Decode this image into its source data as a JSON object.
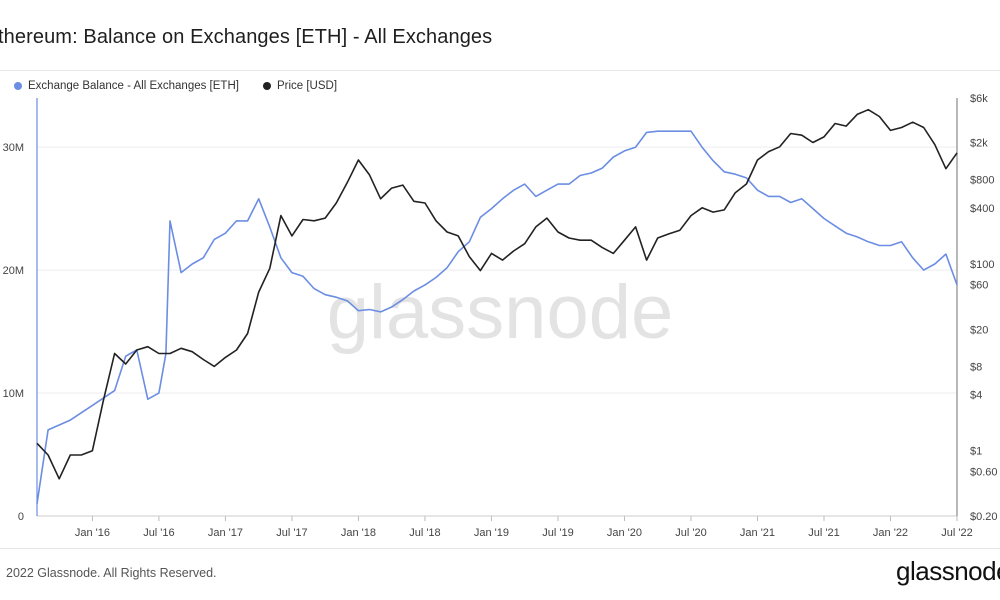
{
  "page": {
    "footer": "2022 Glassnode. All Rights Reserved.",
    "brand": "glassnode",
    "watermark": "glassnode"
  },
  "colors": {
    "balance": "#6b8de3",
    "price": "#222222",
    "grid": "#eeeeee",
    "axis_text": "#444444",
    "watermark": "#e3e3e3"
  },
  "chart_data": {
    "type": "line",
    "title": "thereum: Balance on Exchanges [ETH] - All Exchanges",
    "x_ticks": [
      "Jan '16",
      "Jul '16",
      "Jan '17",
      "Jul '17",
      "Jan '18",
      "Jul '18",
      "Jan '19",
      "Jul '19",
      "Jan '20",
      "Jul '20",
      "Jan '21",
      "Jul '21",
      "Jan '22",
      "Jul '22"
    ],
    "x_range": [
      "2015-08",
      "2022-07"
    ],
    "y_left": {
      "ticks": [
        "0",
        "10M",
        "20M",
        "30M"
      ],
      "values": [
        0,
        10000000,
        20000000,
        30000000
      ],
      "range": [
        0,
        34000000
      ]
    },
    "y_right": {
      "scale": "log",
      "ticks": [
        "$0.20",
        "$0.60",
        "$1",
        "$4",
        "$8",
        "$20",
        "$60",
        "$100",
        "$400",
        "$800",
        "$2k",
        "$6k"
      ],
      "values": [
        0.2,
        0.6,
        1,
        4,
        8,
        20,
        60,
        100,
        400,
        800,
        2000,
        6000
      ],
      "range": [
        0.2,
        6000
      ]
    },
    "legend_position": "top-left",
    "grid": true,
    "series": [
      {
        "name": "Exchange Balance - All Exchanges [ETH]",
        "axis": "left",
        "points": [
          [
            "2015-08",
            1000000
          ],
          [
            "2015-09",
            7000000
          ],
          [
            "2015-11",
            7800000
          ],
          [
            "2016-01",
            9000000
          ],
          [
            "2016-03",
            10200000
          ],
          [
            "2016-04",
            13000000
          ],
          [
            "2016-05",
            13500000
          ],
          [
            "2016-06",
            9500000
          ],
          [
            "2016-07",
            10000000
          ],
          [
            "2016-07-20",
            13200000
          ],
          [
            "2016-08",
            24000000
          ],
          [
            "2016-09",
            19800000
          ],
          [
            "2016-10",
            20500000
          ],
          [
            "2016-11",
            21000000
          ],
          [
            "2016-12",
            22500000
          ],
          [
            "2017-01",
            23000000
          ],
          [
            "2017-02",
            24000000
          ],
          [
            "2017-03",
            24000000
          ],
          [
            "2017-04",
            25800000
          ],
          [
            "2017-05",
            23500000
          ],
          [
            "2017-06",
            21000000
          ],
          [
            "2017-07",
            19800000
          ],
          [
            "2017-08",
            19500000
          ],
          [
            "2017-09",
            18500000
          ],
          [
            "2017-10",
            18000000
          ],
          [
            "2017-11",
            17800000
          ],
          [
            "2017-12",
            17500000
          ],
          [
            "2018-01",
            16700000
          ],
          [
            "2018-02",
            16800000
          ],
          [
            "2018-03",
            16600000
          ],
          [
            "2018-04",
            17000000
          ],
          [
            "2018-05",
            17600000
          ],
          [
            "2018-06",
            18300000
          ],
          [
            "2018-07",
            18800000
          ],
          [
            "2018-08",
            19400000
          ],
          [
            "2018-09",
            20200000
          ],
          [
            "2018-10",
            21500000
          ],
          [
            "2018-11",
            22300000
          ],
          [
            "2018-12",
            24300000
          ],
          [
            "2019-01",
            25000000
          ],
          [
            "2019-02",
            25800000
          ],
          [
            "2019-03",
            26500000
          ],
          [
            "2019-04",
            27000000
          ],
          [
            "2019-05",
            26000000
          ],
          [
            "2019-06",
            26500000
          ],
          [
            "2019-07",
            27000000
          ],
          [
            "2019-08",
            27000000
          ],
          [
            "2019-09",
            27700000
          ],
          [
            "2019-10",
            27900000
          ],
          [
            "2019-11",
            28300000
          ],
          [
            "2019-12",
            29200000
          ],
          [
            "2020-01",
            29700000
          ],
          [
            "2020-02",
            30000000
          ],
          [
            "2020-03",
            31200000
          ],
          [
            "2020-04",
            31300000
          ],
          [
            "2020-05",
            31300000
          ],
          [
            "2020-06",
            31300000
          ],
          [
            "2020-07",
            31300000
          ],
          [
            "2020-08",
            30000000
          ],
          [
            "2020-09",
            28900000
          ],
          [
            "2020-10",
            28000000
          ],
          [
            "2020-11",
            27800000
          ],
          [
            "2020-12",
            27500000
          ],
          [
            "2021-01",
            26500000
          ],
          [
            "2021-02",
            26000000
          ],
          [
            "2021-03",
            26000000
          ],
          [
            "2021-04",
            25500000
          ],
          [
            "2021-05",
            25800000
          ],
          [
            "2021-06",
            25000000
          ],
          [
            "2021-07",
            24200000
          ],
          [
            "2021-08",
            23600000
          ],
          [
            "2021-09",
            23000000
          ],
          [
            "2021-10",
            22700000
          ],
          [
            "2021-11",
            22300000
          ],
          [
            "2021-12",
            22000000
          ],
          [
            "2022-01",
            22000000
          ],
          [
            "2022-02",
            22300000
          ],
          [
            "2022-03",
            21000000
          ],
          [
            "2022-04",
            20000000
          ],
          [
            "2022-05",
            20500000
          ],
          [
            "2022-06",
            21300000
          ],
          [
            "2022-07",
            18800000
          ]
        ]
      },
      {
        "name": "Price [USD]",
        "axis": "right",
        "points": [
          [
            "2015-08",
            1.2
          ],
          [
            "2015-09",
            0.9
          ],
          [
            "2015-10",
            0.5
          ],
          [
            "2015-11",
            0.9
          ],
          [
            "2015-12",
            0.9
          ],
          [
            "2016-01",
            1.0
          ],
          [
            "2016-02",
            3.5
          ],
          [
            "2016-03",
            11
          ],
          [
            "2016-04",
            8.5
          ],
          [
            "2016-05",
            12
          ],
          [
            "2016-06",
            13
          ],
          [
            "2016-07",
            11
          ],
          [
            "2016-08",
            11
          ],
          [
            "2016-09",
            12.5
          ],
          [
            "2016-10",
            11.5
          ],
          [
            "2016-11",
            9.5
          ],
          [
            "2016-12",
            8
          ],
          [
            "2017-01",
            10
          ],
          [
            "2017-02",
            12
          ],
          [
            "2017-03",
            18
          ],
          [
            "2017-04",
            50
          ],
          [
            "2017-05",
            90
          ],
          [
            "2017-06",
            330
          ],
          [
            "2017-07",
            200
          ],
          [
            "2017-08",
            300
          ],
          [
            "2017-09",
            290
          ],
          [
            "2017-10",
            310
          ],
          [
            "2017-11",
            450
          ],
          [
            "2017-12",
            750
          ],
          [
            "2018-01",
            1300
          ],
          [
            "2018-02",
            900
          ],
          [
            "2018-03",
            500
          ],
          [
            "2018-04",
            650
          ],
          [
            "2018-05",
            700
          ],
          [
            "2018-06",
            470
          ],
          [
            "2018-07",
            450
          ],
          [
            "2018-08",
            290
          ],
          [
            "2018-09",
            220
          ],
          [
            "2018-10",
            200
          ],
          [
            "2018-11",
            120
          ],
          [
            "2018-12",
            85
          ],
          [
            "2019-01",
            130
          ],
          [
            "2019-02",
            110
          ],
          [
            "2019-03",
            138
          ],
          [
            "2019-04",
            165
          ],
          [
            "2019-05",
            250
          ],
          [
            "2019-06",
            310
          ],
          [
            "2019-07",
            220
          ],
          [
            "2019-08",
            190
          ],
          [
            "2019-09",
            180
          ],
          [
            "2019-10",
            180
          ],
          [
            "2019-11",
            150
          ],
          [
            "2019-12",
            130
          ],
          [
            "2020-01",
            180
          ],
          [
            "2020-02",
            250
          ],
          [
            "2020-03",
            110
          ],
          [
            "2020-04",
            190
          ],
          [
            "2020-05",
            210
          ],
          [
            "2020-06",
            230
          ],
          [
            "2020-07",
            330
          ],
          [
            "2020-08",
            400
          ],
          [
            "2020-09",
            360
          ],
          [
            "2020-10",
            380
          ],
          [
            "2020-11",
            580
          ],
          [
            "2020-12",
            720
          ],
          [
            "2021-01",
            1300
          ],
          [
            "2021-02",
            1600
          ],
          [
            "2021-03",
            1800
          ],
          [
            "2021-04",
            2500
          ],
          [
            "2021-05",
            2400
          ],
          [
            "2021-06",
            2000
          ],
          [
            "2021-07",
            2300
          ],
          [
            "2021-08",
            3200
          ],
          [
            "2021-09",
            3000
          ],
          [
            "2021-10",
            4000
          ],
          [
            "2021-11",
            4500
          ],
          [
            "2021-12",
            3800
          ],
          [
            "2022-01",
            2700
          ],
          [
            "2022-02",
            2900
          ],
          [
            "2022-03",
            3300
          ],
          [
            "2022-04",
            2900
          ],
          [
            "2022-05",
            1900
          ],
          [
            "2022-06",
            1050
          ],
          [
            "2022-07",
            1550
          ]
        ]
      }
    ]
  }
}
